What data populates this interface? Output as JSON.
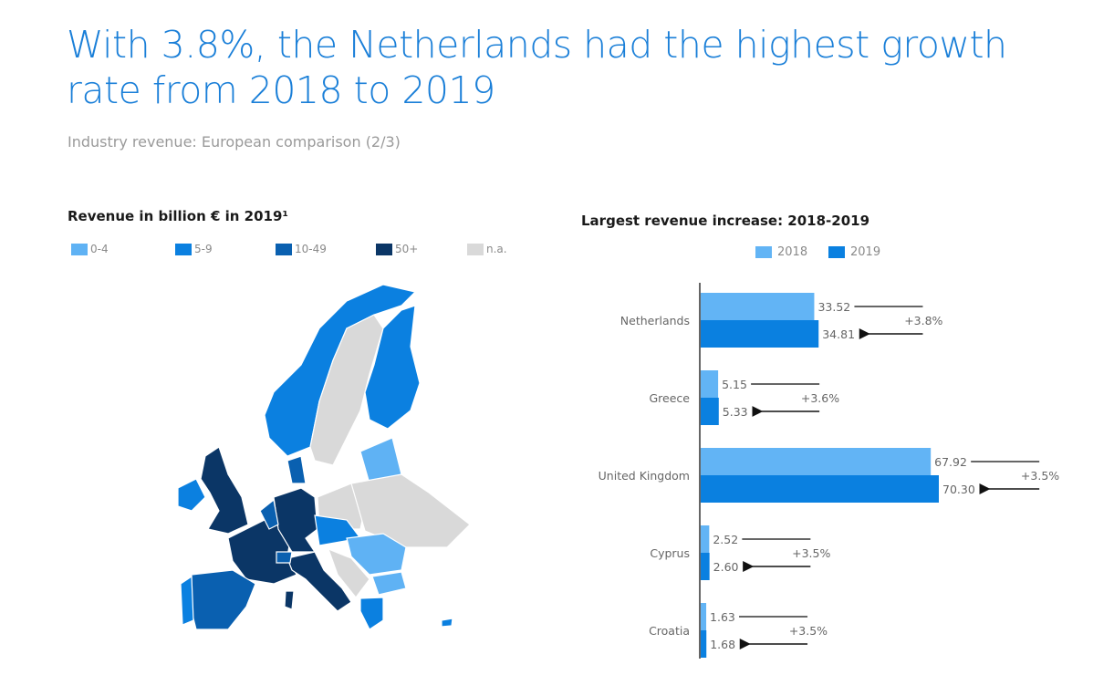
{
  "header": {
    "title": "With 3.8%, the Netherlands had the highest growth rate from 2018 to 2019",
    "subtitle": "Industry revenue: European comparison (2/3)"
  },
  "map": {
    "title": "Revenue in billion € in 2019¹",
    "legend": [
      {
        "label": "0-4",
        "color": "#5fb2f4"
      },
      {
        "label": "5-9",
        "color": "#0b80e0"
      },
      {
        "label": "10-49",
        "color": "#0a60b0"
      },
      {
        "label": "50+",
        "color": "#0b3666"
      },
      {
        "label": "n.a.",
        "color": "#d9d9d9"
      }
    ]
  },
  "chart_data": {
    "type": "bar",
    "orientation": "horizontal",
    "title": "Largest revenue increase: 2018-2019",
    "categories": [
      "Netherlands",
      "Greece",
      "United Kingdom",
      "Cyprus",
      "Croatia"
    ],
    "series": [
      {
        "name": "2018",
        "color": "#62b4f5",
        "values": [
          33.52,
          5.15,
          67.92,
          2.52,
          1.63
        ],
        "labels": [
          "33.52",
          "5.15",
          "67.92",
          "2.52",
          "1.63"
        ]
      },
      {
        "name": "2019",
        "color": "#0a80e0",
        "values": [
          34.81,
          5.33,
          70.3,
          2.6,
          1.68
        ],
        "labels": [
          "34.81",
          "5.33",
          "70.30",
          "2.60",
          "1.68"
        ]
      }
    ],
    "growth": [
      "+3.8%",
      "+3.6%",
      "+3.5%",
      "+3.5%",
      "+3.5%"
    ],
    "legend_position": "top",
    "grid": false
  }
}
